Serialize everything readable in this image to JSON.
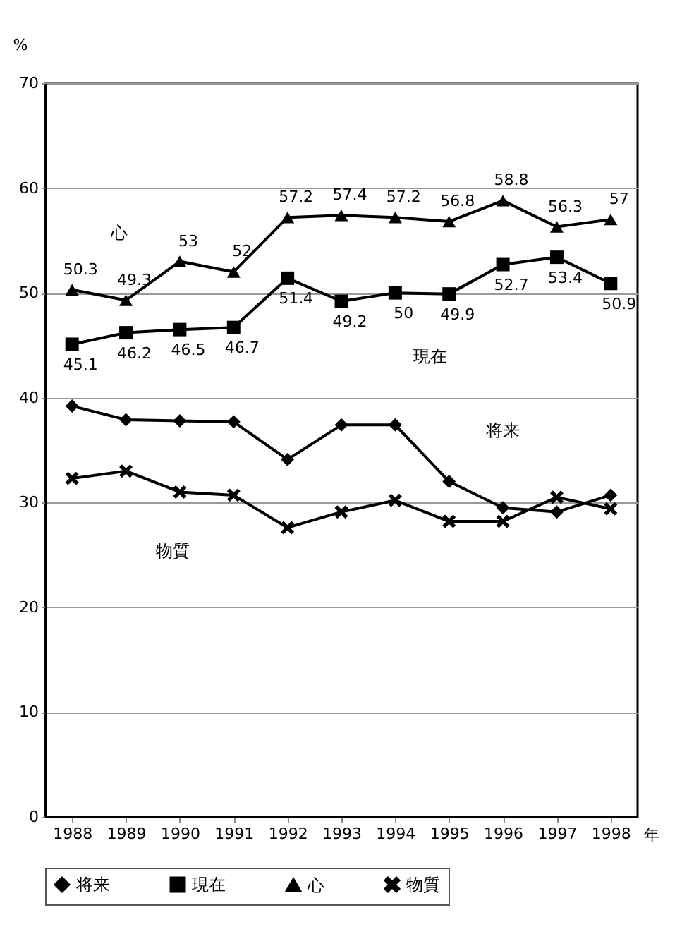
{
  "chart_data": {
    "type": "line",
    "ylabel": "%",
    "xlabel": "年",
    "categories": [
      "1988",
      "1989",
      "1990",
      "1991",
      "1992",
      "1993",
      "1994",
      "1995",
      "1996",
      "1997",
      "1998"
    ],
    "ylim": [
      0,
      70
    ],
    "yticks": [
      0,
      10,
      20,
      30,
      40,
      50,
      60,
      70
    ],
    "grid": "y",
    "legend": "bottom",
    "series": [
      {
        "name": "将来",
        "color": "#000000",
        "marker": "diamond",
        "values": [
          39.2,
          37.9,
          37.8,
          37.7,
          34.1,
          37.4,
          37.4,
          32.0,
          29.5,
          29.1,
          30.7
        ]
      },
      {
        "name": "現在",
        "color": "#000000",
        "marker": "square",
        "values": [
          45.1,
          46.2,
          46.5,
          46.7,
          51.4,
          49.2,
          50,
          49.9,
          52.7,
          53.4,
          50.9
        ],
        "value_labels": [
          "45.1",
          "46.2",
          "46.5",
          "46.7",
          "51.4",
          "49.2",
          "50",
          "49.9",
          "52.7",
          "53.4",
          "50.9"
        ]
      },
      {
        "name": "心",
        "color": "#000000",
        "marker": "triangle",
        "values": [
          50.3,
          49.3,
          53,
          52,
          57.2,
          57.4,
          57.2,
          56.8,
          58.8,
          56.3,
          57
        ],
        "value_labels": [
          "50.3",
          "49.3",
          "53",
          "52",
          "57.2",
          "57.4",
          "57.2",
          "56.8",
          "58.8",
          "56.3",
          "57"
        ]
      },
      {
        "name": "物質",
        "color": "#000000",
        "marker": "cross",
        "values": [
          32.3,
          33.0,
          31.0,
          30.7,
          27.6,
          29.1,
          30.2,
          28.2,
          28.2,
          30.5,
          29.4
        ]
      }
    ]
  }
}
